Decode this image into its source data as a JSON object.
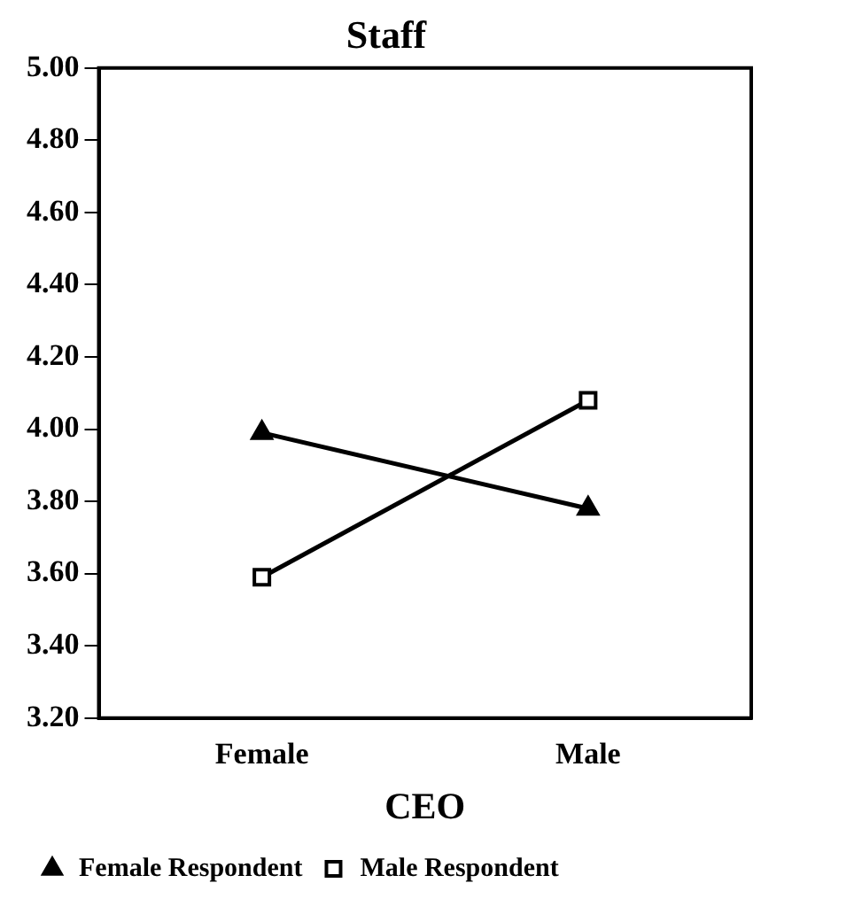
{
  "chart_data": {
    "type": "line",
    "title": "Staff",
    "xlabel": "CEO",
    "categories": [
      "Female",
      "Male"
    ],
    "series": [
      {
        "name": "Female Respondent",
        "color": "#000000",
        "marker": "triangle",
        "values": [
          3.99,
          3.78
        ]
      },
      {
        "name": "Male Respondent",
        "color": "#000000",
        "marker": "square",
        "values": [
          3.59,
          4.08
        ]
      }
    ],
    "ylim": [
      3.2,
      5.0
    ],
    "yticks": [
      {
        "value": 3.2,
        "label": "3.20"
      },
      {
        "value": 3.4,
        "label": "3.40"
      },
      {
        "value": 3.6,
        "label": "3.60"
      },
      {
        "value": 3.8,
        "label": "3.80"
      },
      {
        "value": 4.0,
        "label": "4.00"
      },
      {
        "value": 4.2,
        "label": "4.20"
      },
      {
        "value": 4.4,
        "label": "4.40"
      },
      {
        "value": 4.6,
        "label": "4.60"
      },
      {
        "value": 4.8,
        "label": "4.80"
      },
      {
        "value": 5.0,
        "label": "5.00"
      }
    ],
    "grid": false,
    "legend": "bottom",
    "line_style": "solid"
  }
}
